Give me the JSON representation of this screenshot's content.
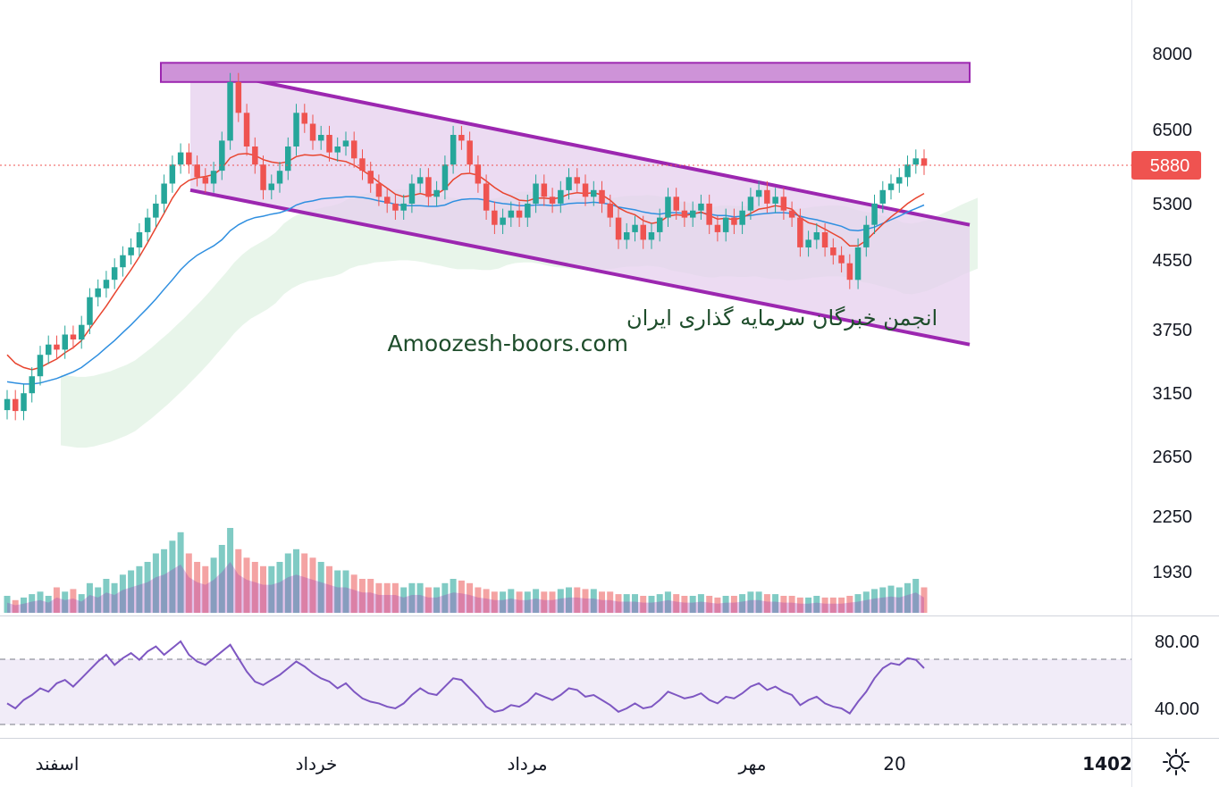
{
  "watermark": {
    "line1": "انجمن خبرگان سرمایه گذاری ایران",
    "line2": "Amoozesh-boors.com"
  },
  "price_axis_ticks": [
    "8000",
    "6500",
    "5300",
    "4550",
    "3750",
    "3150",
    "2650",
    "2250",
    "1930"
  ],
  "rsi_axis_ticks": [
    "80.00",
    "40.00"
  ],
  "time_axis_ticks": [
    "اسفند",
    "خرداد",
    "مرداد",
    "مهر",
    "20",
    "1402"
  ],
  "last_price_label": "5880",
  "icons": {
    "settings": "sun-gear-icon"
  },
  "colors": {
    "up": "#26a69a",
    "down": "#ef5350",
    "channel": "#9c27b0",
    "channel_fill": "#e6cfee",
    "ema_red": "#e8452f",
    "ema_blue": "#2f8fe0",
    "rsi_line": "#7e57c2",
    "cloud": "#d6ecd8"
  },
  "chart_data": {
    "type": "candlestick",
    "price_scale": "log",
    "ylim": [
      1700,
      9200
    ],
    "last_price": 5880,
    "candles_close": [
      3100,
      3000,
      3150,
      3300,
      3500,
      3600,
      3550,
      3700,
      3650,
      3800,
      4100,
      4200,
      4300,
      4450,
      4600,
      4700,
      4900,
      5100,
      5300,
      5600,
      5900,
      6100,
      5900,
      5700,
      5600,
      5800,
      6300,
      7400,
      6800,
      6200,
      5900,
      5500,
      5600,
      5800,
      6200,
      6800,
      6600,
      6300,
      6400,
      6100,
      6200,
      6300,
      6000,
      5800,
      5600,
      5400,
      5300,
      5200,
      5300,
      5600,
      5700,
      5400,
      5500,
      5900,
      6400,
      6300,
      5900,
      5600,
      5200,
      5000,
      5100,
      5200,
      5100,
      5300,
      5600,
      5400,
      5300,
      5500,
      5700,
      5600,
      5400,
      5500,
      5300,
      5100,
      4800,
      4900,
      5000,
      4800,
      4900,
      5100,
      5400,
      5200,
      5100,
      5200,
      5300,
      5000,
      4900,
      5100,
      5000,
      5200,
      5400,
      5500,
      5300,
      5400,
      5200,
      5100,
      4700,
      4800,
      4900,
      4700,
      4600,
      4500,
      4300,
      4700,
      5000,
      5300,
      5500,
      5600,
      5700,
      5900,
      6000,
      5880
    ],
    "ema_red": [
      3500,
      3420,
      3380,
      3360,
      3380,
      3420,
      3460,
      3520,
      3570,
      3640,
      3760,
      3880,
      4000,
      4140,
      4280,
      4420,
      4580,
      4760,
      4960,
      5160,
      5380,
      5560,
      5650,
      5690,
      5710,
      5740,
      5840,
      6010,
      6070,
      6080,
      6050,
      5980,
      5940,
      5920,
      5950,
      6030,
      6060,
      6050,
      6060,
      6010,
      5970,
      5950,
      5890,
      5810,
      5720,
      5620,
      5530,
      5440,
      5400,
      5420,
      5450,
      5420,
      5440,
      5520,
      5660,
      5750,
      5760,
      5730,
      5640,
      5540,
      5460,
      5410,
      5350,
      5340,
      5380,
      5380,
      5370,
      5390,
      5440,
      5460,
      5450,
      5460,
      5430,
      5350,
      5240,
      5180,
      5140,
      5060,
      5020,
      5040,
      5120,
      5140,
      5130,
      5150,
      5180,
      5130,
      5080,
      5090,
      5070,
      5100,
      5160,
      5220,
      5240,
      5270,
      5250,
      5220,
      5100,
      5030,
      5000,
      4940,
      4880,
      4820,
      4720,
      4720,
      4790,
      4900,
      5010,
      5110,
      5200,
      5300,
      5380,
      5450
    ],
    "ema_blue": [
      3250,
      3240,
      3230,
      3230,
      3240,
      3260,
      3280,
      3310,
      3340,
      3380,
      3440,
      3500,
      3570,
      3640,
      3720,
      3800,
      3890,
      3980,
      4080,
      4190,
      4300,
      4420,
      4520,
      4600,
      4660,
      4720,
      4800,
      4920,
      5000,
      5060,
      5100,
      5120,
      5150,
      5170,
      5210,
      5280,
      5320,
      5340,
      5370,
      5380,
      5390,
      5400,
      5400,
      5390,
      5370,
      5340,
      5320,
      5290,
      5270,
      5270,
      5270,
      5260,
      5260,
      5280,
      5330,
      5360,
      5370,
      5370,
      5350,
      5320,
      5300,
      5290,
      5270,
      5270,
      5280,
      5280,
      5270,
      5280,
      5300,
      5310,
      5310,
      5320,
      5310,
      5290,
      5250,
      5230,
      5210,
      5180,
      5160,
      5150,
      5170,
      5170,
      5160,
      5160,
      5170,
      5150,
      5130,
      5130,
      5110,
      5120,
      5130,
      5150,
      5160,
      5170,
      5170,
      5160,
      5120,
      5090,
      5070,
      5040,
      5010,
      4980,
      4930,
      4920,
      4940,
      4970,
      5020,
      5070,
      5120,
      5180,
      5230,
      5280
    ],
    "volume": [
      0.2,
      0.15,
      0.18,
      0.22,
      0.25,
      0.2,
      0.3,
      0.25,
      0.28,
      0.22,
      0.35,
      0.3,
      0.4,
      0.35,
      0.45,
      0.5,
      0.55,
      0.6,
      0.7,
      0.75,
      0.85,
      0.95,
      0.7,
      0.6,
      0.55,
      0.65,
      0.8,
      1.0,
      0.75,
      0.65,
      0.6,
      0.55,
      0.55,
      0.6,
      0.7,
      0.75,
      0.7,
      0.65,
      0.6,
      0.55,
      0.5,
      0.5,
      0.45,
      0.4,
      0.4,
      0.35,
      0.35,
      0.35,
      0.3,
      0.35,
      0.35,
      0.3,
      0.3,
      0.35,
      0.4,
      0.38,
      0.35,
      0.3,
      0.28,
      0.25,
      0.25,
      0.28,
      0.25,
      0.25,
      0.28,
      0.25,
      0.25,
      0.28,
      0.3,
      0.3,
      0.28,
      0.28,
      0.25,
      0.25,
      0.22,
      0.22,
      0.22,
      0.2,
      0.2,
      0.22,
      0.25,
      0.22,
      0.2,
      0.2,
      0.22,
      0.2,
      0.18,
      0.2,
      0.2,
      0.22,
      0.25,
      0.25,
      0.22,
      0.22,
      0.2,
      0.2,
      0.18,
      0.18,
      0.2,
      0.18,
      0.18,
      0.18,
      0.2,
      0.22,
      0.25,
      0.28,
      0.3,
      0.32,
      0.3,
      0.35,
      0.4,
      0.3
    ],
    "rsi": [
      43,
      40,
      45,
      48,
      52,
      50,
      55,
      57,
      53,
      58,
      63,
      68,
      72,
      66,
      70,
      73,
      69,
      74,
      77,
      72,
      76,
      80,
      72,
      68,
      66,
      70,
      74,
      78,
      70,
      62,
      56,
      54,
      57,
      60,
      64,
      68,
      65,
      61,
      58,
      56,
      52,
      55,
      50,
      46,
      44,
      43,
      41,
      40,
      43,
      48,
      52,
      49,
      48,
      53,
      58,
      57,
      52,
      47,
      41,
      38,
      39,
      42,
      41,
      44,
      49,
      47,
      45,
      48,
      52,
      51,
      47,
      48,
      45,
      42,
      38,
      40,
      43,
      40,
      41,
      45,
      50,
      48,
      46,
      47,
      49,
      45,
      43,
      47,
      46,
      49,
      53,
      55,
      51,
      53,
      50,
      48,
      42,
      45,
      47,
      43,
      41,
      40,
      37,
      44,
      50,
      58,
      64,
      67,
      66,
      70,
      69,
      64
    ],
    "rsi_bands": [
      70,
      30
    ],
    "channel": {
      "upper": [
        7700,
        5000
      ],
      "lower": [
        5500,
        3600
      ]
    },
    "resistance_zone": [
      7400,
      7800
    ]
  }
}
